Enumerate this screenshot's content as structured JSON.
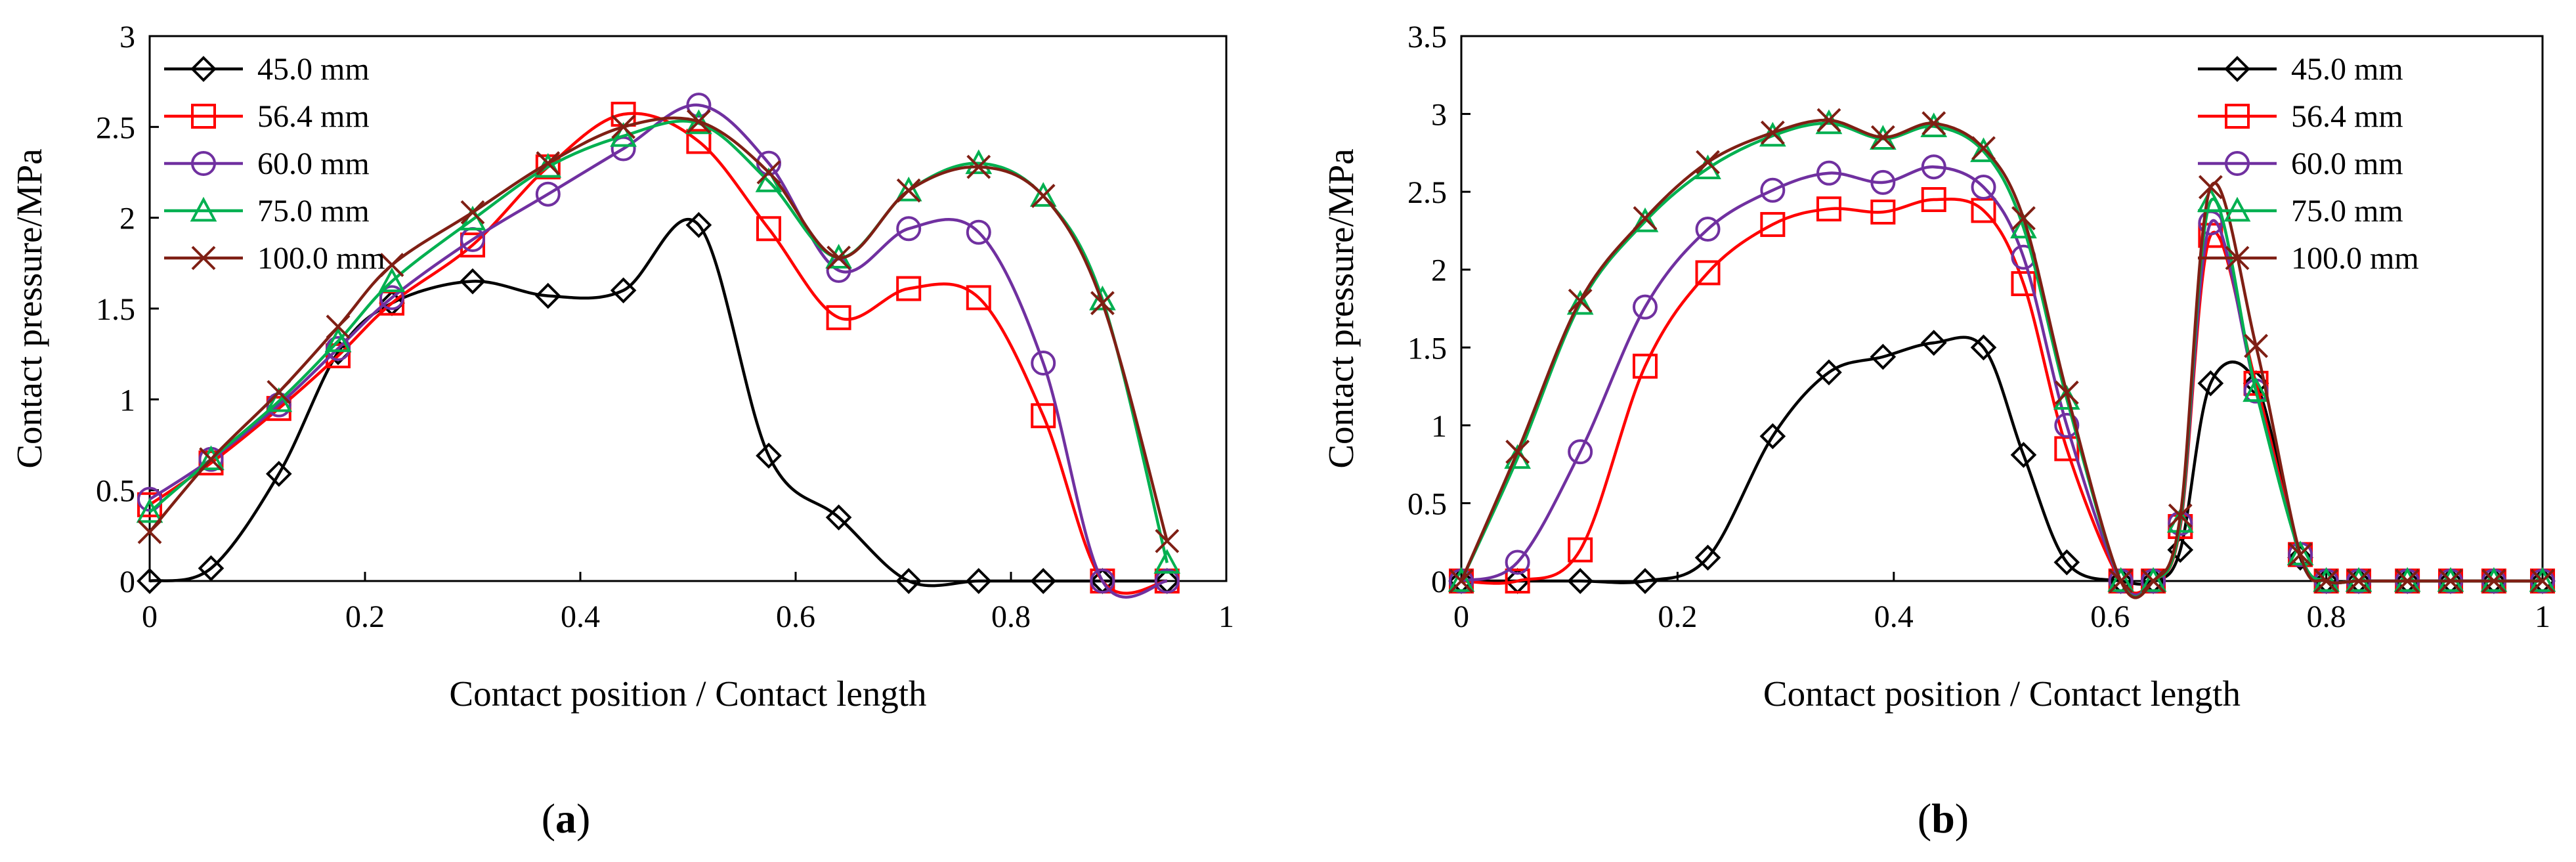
{
  "figure": {
    "panels": [
      {
        "paren_open": "(",
        "letter": "a",
        "paren_close": ")"
      },
      {
        "paren_open": "(",
        "letter": "b",
        "paren_close": ")"
      }
    ]
  },
  "chart_data": [
    {
      "type": "line",
      "panel": "a",
      "title": "",
      "xlabel": "Contact position / Contact length",
      "ylabel": "Contact pressure/MPa",
      "xlim": [
        0,
        1
      ],
      "ylim": [
        0,
        3
      ],
      "xticks": [
        0,
        0.2,
        0.4,
        0.6,
        0.8,
        1
      ],
      "xtick_labels": [
        "0",
        "0.2",
        "0.4",
        "0.6",
        "0.8",
        "1"
      ],
      "yticks": [
        0,
        0.5,
        1,
        1.5,
        2,
        2.5,
        3
      ],
      "ytick_labels": [
        "0",
        "0.5",
        "1",
        "1.5",
        "2",
        "2.5",
        "3"
      ],
      "grid": false,
      "legend_position": "top-left",
      "series": [
        {
          "name": "45.0 mm",
          "color": "#000000",
          "marker": "diamond",
          "x": [
            0,
            0.057,
            0.12,
            0.175,
            0.225,
            0.3,
            0.37,
            0.44,
            0.51,
            0.575,
            0.64,
            0.705,
            0.77,
            0.83,
            0.885,
            0.945
          ],
          "values": [
            0,
            0.07,
            0.59,
            1.26,
            1.53,
            1.65,
            1.57,
            1.6,
            1.96,
            0.69,
            0.35,
            0,
            0,
            0,
            0,
            0
          ]
        },
        {
          "name": "56.4 mm",
          "color": "#ff0000",
          "marker": "square",
          "x": [
            0,
            0.057,
            0.12,
            0.175,
            0.225,
            0.3,
            0.37,
            0.44,
            0.51,
            0.575,
            0.64,
            0.705,
            0.77,
            0.83,
            0.885,
            0.945
          ],
          "values": [
            0.42,
            0.65,
            0.95,
            1.24,
            1.53,
            1.85,
            2.28,
            2.57,
            2.42,
            1.94,
            1.45,
            1.61,
            1.56,
            0.91,
            0,
            0
          ]
        },
        {
          "name": "60.0 mm",
          "color": "#7030a0",
          "marker": "circle",
          "x": [
            0,
            0.057,
            0.12,
            0.175,
            0.225,
            0.3,
            0.37,
            0.44,
            0.51,
            0.575,
            0.64,
            0.705,
            0.77,
            0.83,
            0.885,
            0.945
          ],
          "values": [
            0.45,
            0.67,
            0.97,
            1.28,
            1.56,
            1.88,
            2.13,
            2.38,
            2.62,
            2.3,
            1.71,
            1.94,
            1.92,
            1.2,
            0,
            0
          ]
        },
        {
          "name": "75.0 mm",
          "color": "#00b050",
          "marker": "triangle",
          "x": [
            0,
            0.057,
            0.12,
            0.175,
            0.225,
            0.3,
            0.37,
            0.44,
            0.51,
            0.575,
            0.64,
            0.705,
            0.77,
            0.83,
            0.885,
            0.945
          ],
          "values": [
            0.38,
            0.67,
            0.99,
            1.32,
            1.65,
            1.99,
            2.28,
            2.45,
            2.52,
            2.2,
            1.78,
            2.15,
            2.3,
            2.12,
            1.55,
            0.1
          ]
        },
        {
          "name": "100.0 mm",
          "color": "#7f1f14",
          "marker": "cross",
          "x": [
            0,
            0.057,
            0.12,
            0.175,
            0.225,
            0.3,
            0.37,
            0.44,
            0.51,
            0.575,
            0.64,
            0.705,
            0.77,
            0.83,
            0.885,
            0.945
          ],
          "values": [
            0.27,
            0.67,
            1.04,
            1.4,
            1.74,
            2.03,
            2.3,
            2.5,
            2.53,
            2.25,
            1.78,
            2.15,
            2.28,
            2.12,
            1.53,
            0.22
          ]
        }
      ]
    },
    {
      "type": "line",
      "panel": "b",
      "title": "",
      "xlabel": "Contact position / Contact length",
      "ylabel": "Contact pressure/MPa",
      "xlim": [
        0,
        1
      ],
      "ylim": [
        0,
        3.5
      ],
      "xticks": [
        0,
        0.2,
        0.4,
        0.6,
        0.8,
        1
      ],
      "xtick_labels": [
        "0",
        "0.2",
        "0.4",
        "0.6",
        "0.8",
        "1"
      ],
      "yticks": [
        0,
        0.5,
        1,
        1.5,
        2,
        2.5,
        3,
        3.5
      ],
      "ytick_labels": [
        "0",
        "0.5",
        "1",
        "1.5",
        "2",
        "2.5",
        "3",
        "3.5"
      ],
      "grid": false,
      "legend_position": "top-right",
      "series": [
        {
          "name": "45.0 mm",
          "color": "#000000",
          "marker": "diamond",
          "x": [
            0,
            0.052,
            0.11,
            0.17,
            0.228,
            0.288,
            0.34,
            0.39,
            0.437,
            0.483,
            0.52,
            0.56,
            0.61,
            0.64,
            0.665,
            0.693,
            0.735,
            0.776,
            0.8,
            0.83,
            0.875,
            0.915,
            0.955,
            1
          ],
          "values": [
            0,
            0,
            0,
            0,
            0.15,
            0.93,
            1.34,
            1.44,
            1.53,
            1.5,
            0.81,
            0.12,
            0,
            0,
            0.2,
            1.27,
            1.27,
            0.15,
            0,
            0,
            0,
            0,
            0,
            0
          ]
        },
        {
          "name": "56.4 mm",
          "color": "#ff0000",
          "marker": "square",
          "x": [
            0,
            0.052,
            0.11,
            0.17,
            0.228,
            0.288,
            0.34,
            0.39,
            0.437,
            0.483,
            0.52,
            0.56,
            0.61,
            0.64,
            0.665,
            0.693,
            0.735,
            0.776,
            0.8,
            0.83,
            0.875,
            0.915,
            0.955,
            1
          ],
          "values": [
            0,
            0,
            0.2,
            1.38,
            1.98,
            2.29,
            2.39,
            2.37,
            2.45,
            2.38,
            1.91,
            0.85,
            0,
            0,
            0.35,
            2.22,
            1.27,
            0.17,
            0,
            0,
            0,
            0,
            0,
            0
          ]
        },
        {
          "name": "60.0 mm",
          "color": "#7030a0",
          "marker": "circle",
          "x": [
            0,
            0.052,
            0.11,
            0.17,
            0.228,
            0.288,
            0.34,
            0.39,
            0.437,
            0.483,
            0.52,
            0.56,
            0.61,
            0.64,
            0.665,
            0.693,
            0.735,
            0.776,
            0.8,
            0.83,
            0.875,
            0.915,
            0.955,
            1
          ],
          "values": [
            0,
            0.12,
            0.83,
            1.76,
            2.26,
            2.51,
            2.62,
            2.56,
            2.66,
            2.53,
            2.08,
            1.0,
            0,
            0,
            0.37,
            2.3,
            1.22,
            0.17,
            0,
            0,
            0,
            0,
            0,
            0
          ]
        },
        {
          "name": "75.0 mm",
          "color": "#00b050",
          "marker": "triangle",
          "x": [
            0,
            0.052,
            0.11,
            0.17,
            0.228,
            0.288,
            0.34,
            0.39,
            0.437,
            0.483,
            0.52,
            0.56,
            0.61,
            0.64,
            0.665,
            0.693,
            0.735,
            0.776,
            0.8,
            0.83,
            0.875,
            0.915,
            0.955,
            1
          ],
          "values": [
            0,
            0.79,
            1.78,
            2.31,
            2.65,
            2.86,
            2.94,
            2.84,
            2.92,
            2.76,
            2.27,
            1.17,
            0,
            0,
            0.38,
            2.44,
            1.22,
            0.17,
            0,
            0,
            0,
            0,
            0,
            0
          ]
        },
        {
          "name": "100.0 mm",
          "color": "#7f1f14",
          "marker": "cross",
          "x": [
            0,
            0.052,
            0.11,
            0.17,
            0.228,
            0.288,
            0.34,
            0.39,
            0.437,
            0.483,
            0.52,
            0.56,
            0.61,
            0.64,
            0.665,
            0.693,
            0.735,
            0.776,
            0.8,
            0.83,
            0.875,
            0.915,
            0.955,
            1
          ],
          "values": [
            0,
            0.83,
            1.8,
            2.33,
            2.69,
            2.88,
            2.96,
            2.85,
            2.94,
            2.78,
            2.33,
            1.21,
            0,
            0,
            0.42,
            2.53,
            1.51,
            0.17,
            0,
            0,
            0,
            0,
            0,
            0
          ]
        }
      ]
    }
  ]
}
